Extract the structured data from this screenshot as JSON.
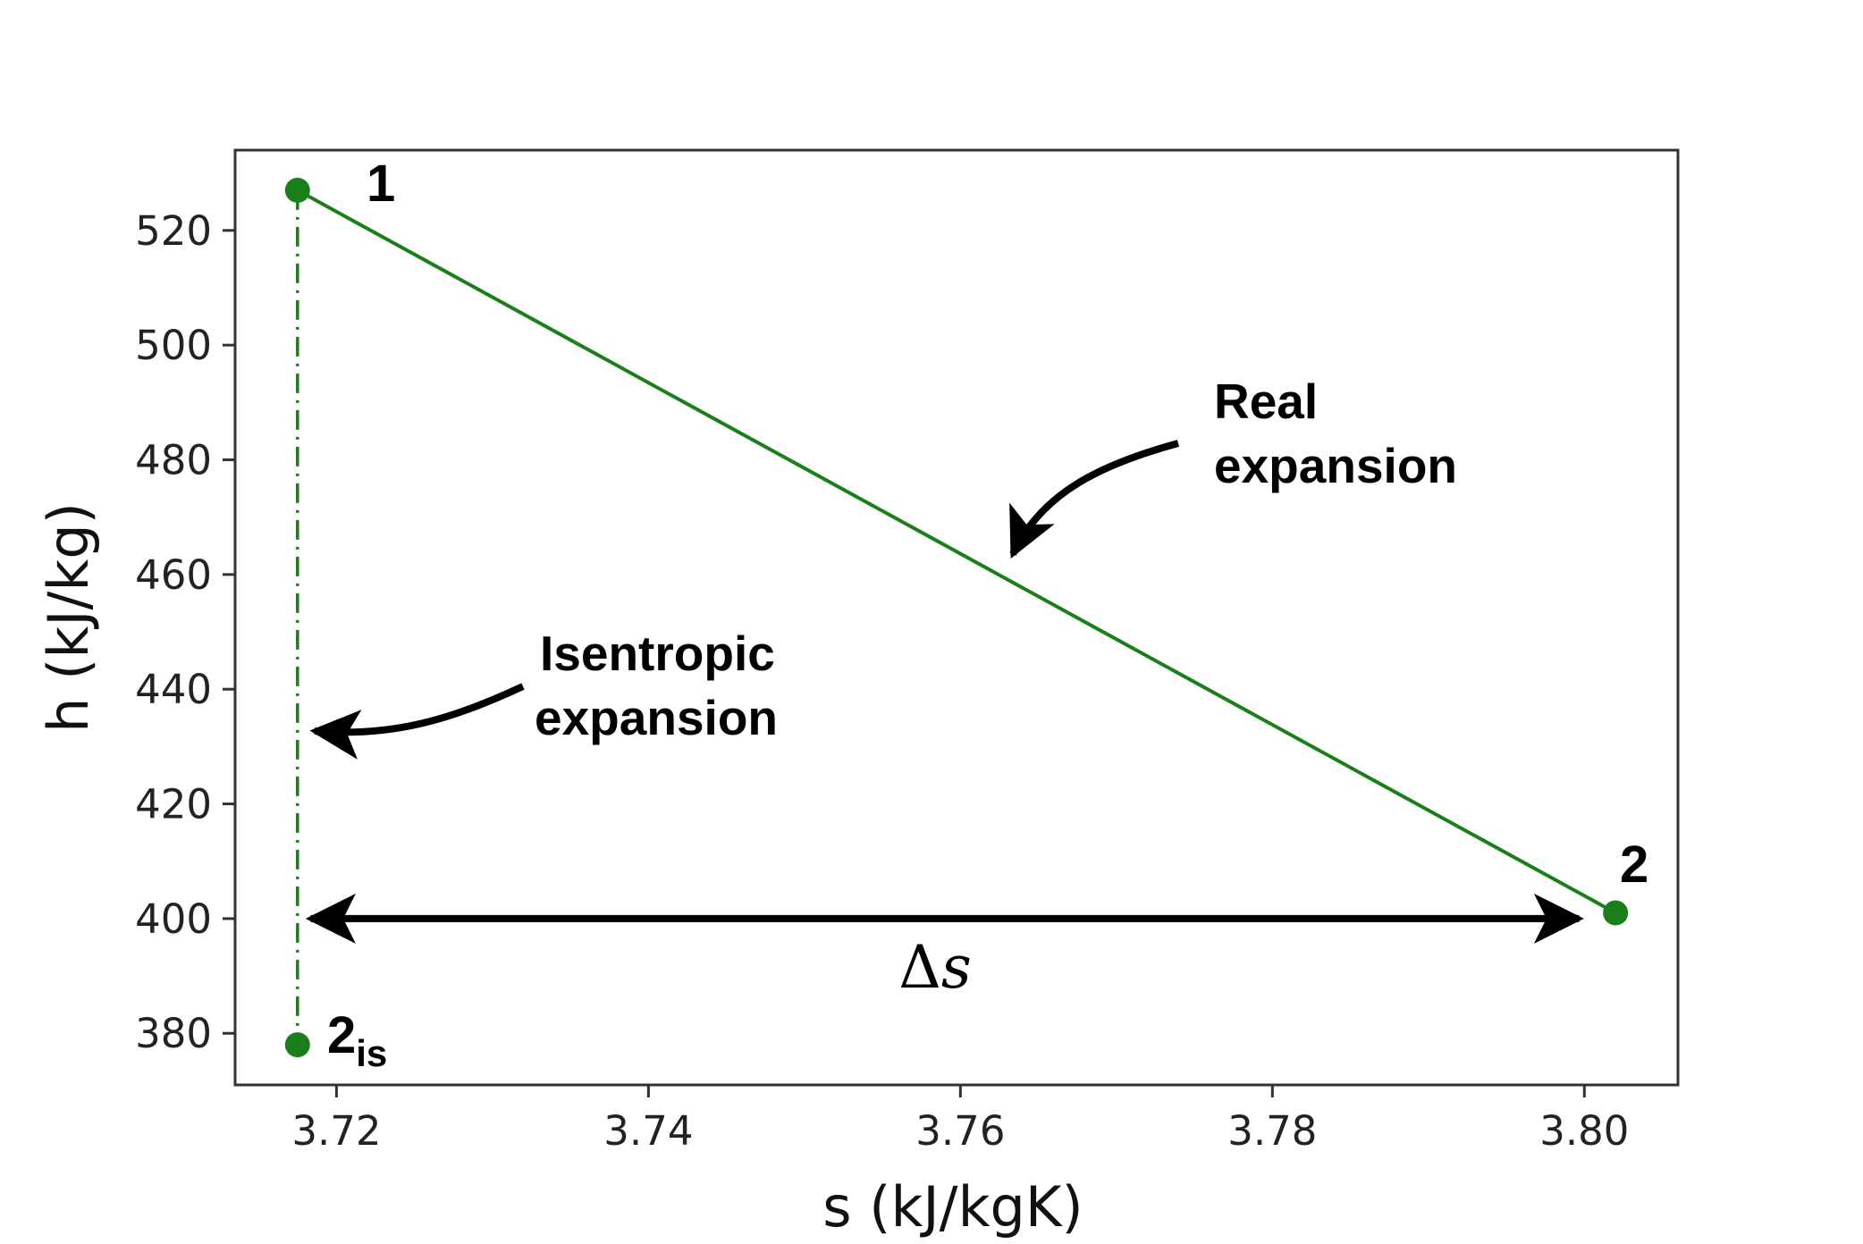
{
  "chart_data": {
    "type": "line",
    "xlabel": "s (kJ/kgK)",
    "ylabel": "h (kJ/kg)",
    "xlim": [
      3.7135,
      3.806
    ],
    "ylim": [
      371,
      534
    ],
    "xticks": [
      3.72,
      3.74,
      3.76,
      3.78,
      3.8
    ],
    "xtick_labels": [
      "3.72",
      "3.74",
      "3.76",
      "3.78",
      "3.80"
    ],
    "yticks": [
      380,
      400,
      420,
      440,
      460,
      480,
      500,
      520
    ],
    "ytick_labels": [
      "380",
      "400",
      "420",
      "440",
      "460",
      "480",
      "500",
      "520"
    ],
    "grid": false,
    "color": "#1a7f1a",
    "points": [
      {
        "id": "p1",
        "label": "1",
        "sub": "",
        "s": 3.7175,
        "h": 527
      },
      {
        "id": "p2",
        "label": "2",
        "sub": "",
        "s": 3.802,
        "h": 401
      },
      {
        "id": "p2is",
        "label": "2",
        "sub": "is",
        "s": 3.7175,
        "h": 378
      }
    ],
    "series": [
      {
        "style": "solid",
        "from": "p1",
        "to": "p2"
      },
      {
        "style": "dashdot",
        "from": "p1",
        "to": "p2is"
      }
    ],
    "annotations": {
      "real": {
        "lines": [
          "Real",
          "expansion"
        ]
      },
      "isentropic": {
        "lines": [
          "Isentropic",
          "expansion"
        ]
      },
      "delta_s": {
        "symbol": "Δ",
        "var": "s",
        "h": 400,
        "s_from": 3.718,
        "s_to": 3.8
      }
    }
  }
}
